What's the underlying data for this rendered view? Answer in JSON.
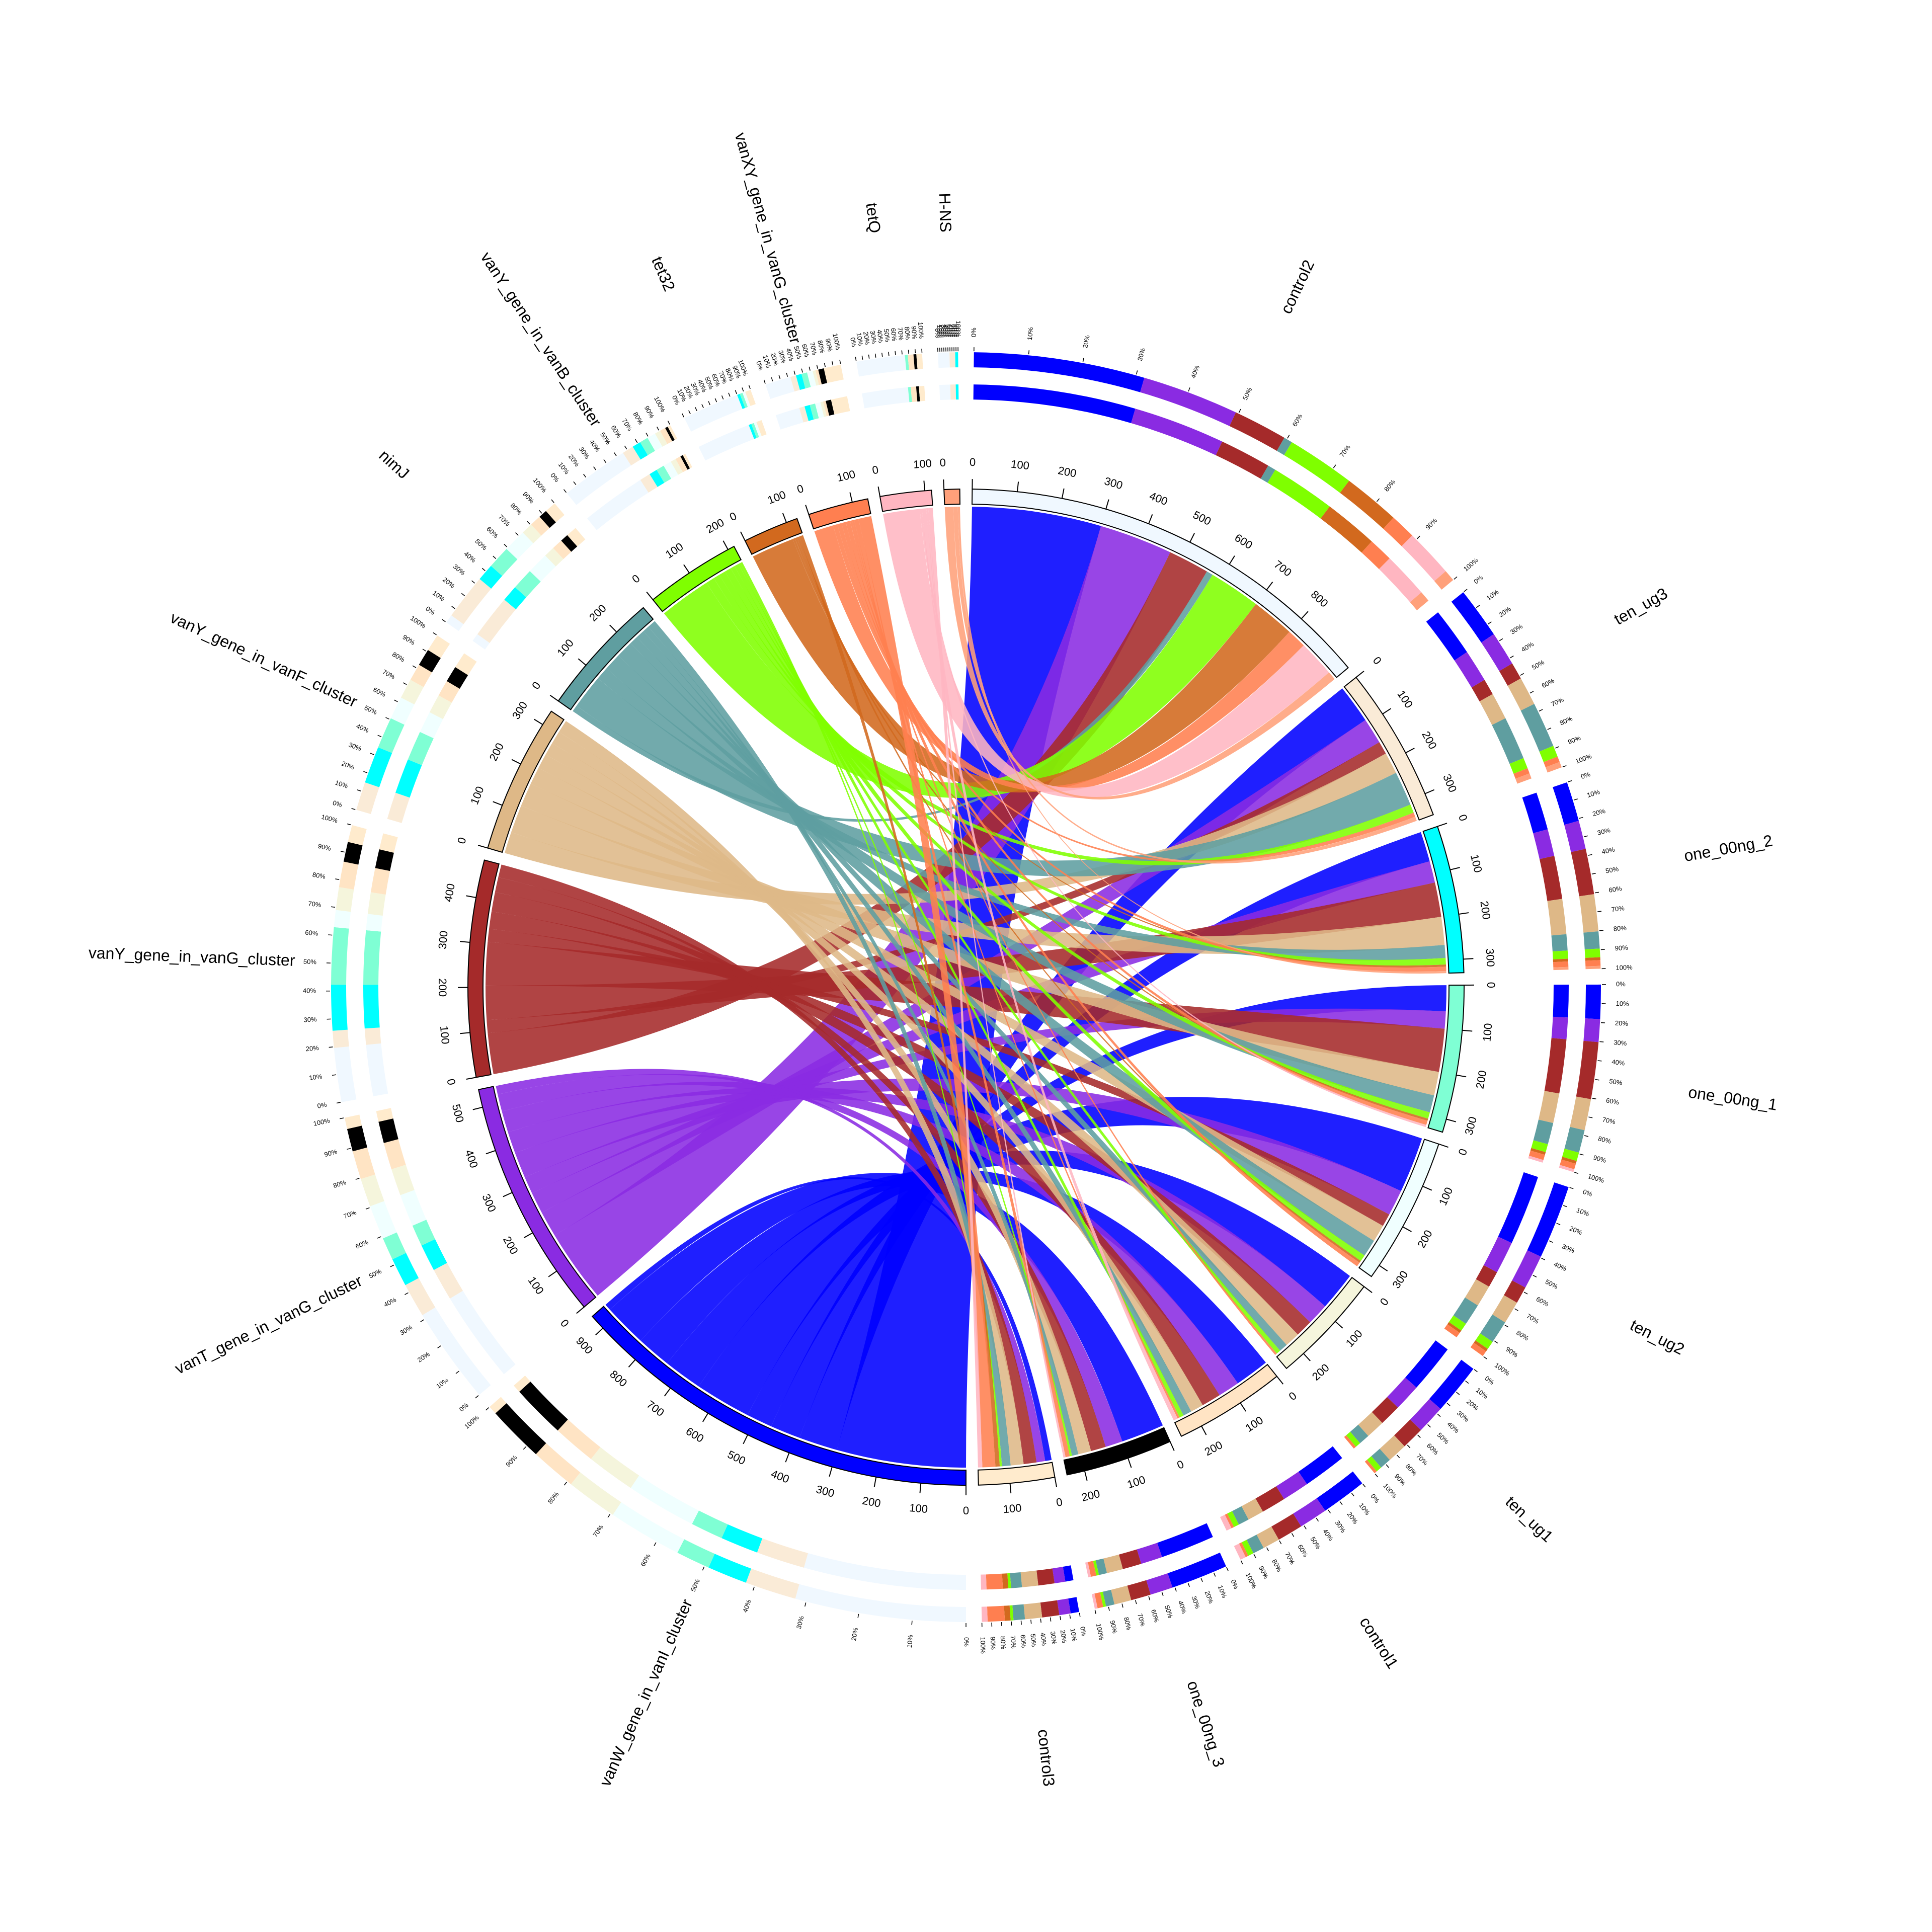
{
  "chart_data": {
    "type": "chord",
    "columns": [
      {
        "name": "control2",
        "color": "#f0f8ff",
        "ticks": [
          0,
          100,
          200,
          300,
          400,
          500,
          600,
          700,
          800
        ]
      },
      {
        "name": "ten_ug3",
        "color": "#faebd7",
        "ticks": [
          0,
          100,
          200,
          300
        ]
      },
      {
        "name": "one_00ng_2",
        "color": "#00ffff",
        "ticks": [
          0,
          100,
          200,
          300
        ]
      },
      {
        "name": "one_00ng_1",
        "color": "#7fffd4",
        "ticks": [
          0,
          100,
          200,
          300
        ]
      },
      {
        "name": "ten_ug2",
        "color": "#f0ffff",
        "ticks": [
          0,
          100,
          200,
          300
        ]
      },
      {
        "name": "ten_ug1",
        "color": "#f5f5dc",
        "ticks": [
          0,
          100,
          200
        ]
      },
      {
        "name": "control1",
        "color": "#ffe4c4",
        "ticks": [
          0,
          100,
          200
        ]
      },
      {
        "name": "one_00ng_3",
        "color": "#000000",
        "ticks": [
          0,
          100,
          200
        ]
      },
      {
        "name": "control3",
        "color": "#ffebcd",
        "ticks": [
          0,
          100
        ]
      }
    ],
    "rows": [
      {
        "name": "vanW_gene_in_vanI_cluster",
        "color": "#0000ff",
        "ticks": [
          0,
          100,
          200,
          300,
          400,
          500,
          600,
          700,
          800,
          900
        ]
      },
      {
        "name": "vanT_gene_in_vanG_cluster",
        "color": "#8a2be2",
        "ticks": [
          0,
          100,
          200,
          300,
          400,
          500
        ]
      },
      {
        "name": "vanY_gene_in_vanG_cluster",
        "color": "#a52a2a",
        "ticks": [
          0,
          100,
          200,
          300,
          400
        ]
      },
      {
        "name": "vanY_gene_in_vanF_cluster",
        "color": "#deb887",
        "ticks": [
          0,
          100,
          200,
          300
        ]
      },
      {
        "name": "nimJ",
        "color": "#5f9ea0",
        "ticks": [
          0,
          100,
          200
        ]
      },
      {
        "name": "vanY_gene_in_vanB_cluster",
        "color": "#7fff00",
        "ticks": [
          0,
          100,
          200
        ]
      },
      {
        "name": "tet32",
        "color": "#d2691e",
        "ticks": [
          0,
          100
        ]
      },
      {
        "name": "vanXY_gene_in_vanG_cluster",
        "color": "#ff7f50",
        "ticks": [
          0,
          100
        ]
      },
      {
        "name": "tetQ",
        "color": "#ffb6c1",
        "ticks": [
          0,
          100
        ]
      },
      {
        "name": "H-NS",
        "color": "#ffa07a",
        "ticks": [
          0
        ]
      }
    ],
    "matrix": [
      [
        300,
        90,
        70,
        60,
        130,
        90,
        80,
        100,
        15
      ],
      [
        170,
        60,
        50,
        40,
        60,
        50,
        50,
        40,
        20
      ],
      [
        95,
        30,
        80,
        100,
        30,
        40,
        45,
        35,
        30
      ],
      [
        0,
        50,
        65,
        55,
        40,
        35,
        30,
        30,
        30
      ],
      [
        15,
        80,
        30,
        40,
        40,
        20,
        20,
        15,
        20
      ],
      [
        120,
        20,
        15,
        15,
        15,
        10,
        10,
        5,
        5
      ],
      [
        100,
        0,
        5,
        5,
        5,
        0,
        0,
        0,
        10
      ],
      [
        45,
        10,
        10,
        10,
        10,
        5,
        5,
        10,
        30
      ],
      [
        85,
        0,
        0,
        5,
        0,
        0,
        10,
        5,
        10
      ],
      [
        20,
        10,
        5,
        0,
        0,
        0,
        0,
        0,
        0
      ]
    ],
    "percent_ticks": [
      {
        "value": 0,
        "label": "0%"
      },
      {
        "value": 10,
        "label": "10%"
      },
      {
        "value": 20,
        "label": "20%"
      },
      {
        "value": 30,
        "label": "30%"
      },
      {
        "value": 40,
        "label": "40%"
      },
      {
        "value": 50,
        "label": "50%"
      },
      {
        "value": 60,
        "label": "60%"
      },
      {
        "value": 70,
        "label": "70%"
      },
      {
        "value": 80,
        "label": "80%"
      },
      {
        "value": 90,
        "label": "90%"
      },
      {
        "value": 100,
        "label": "100%"
      }
    ]
  }
}
